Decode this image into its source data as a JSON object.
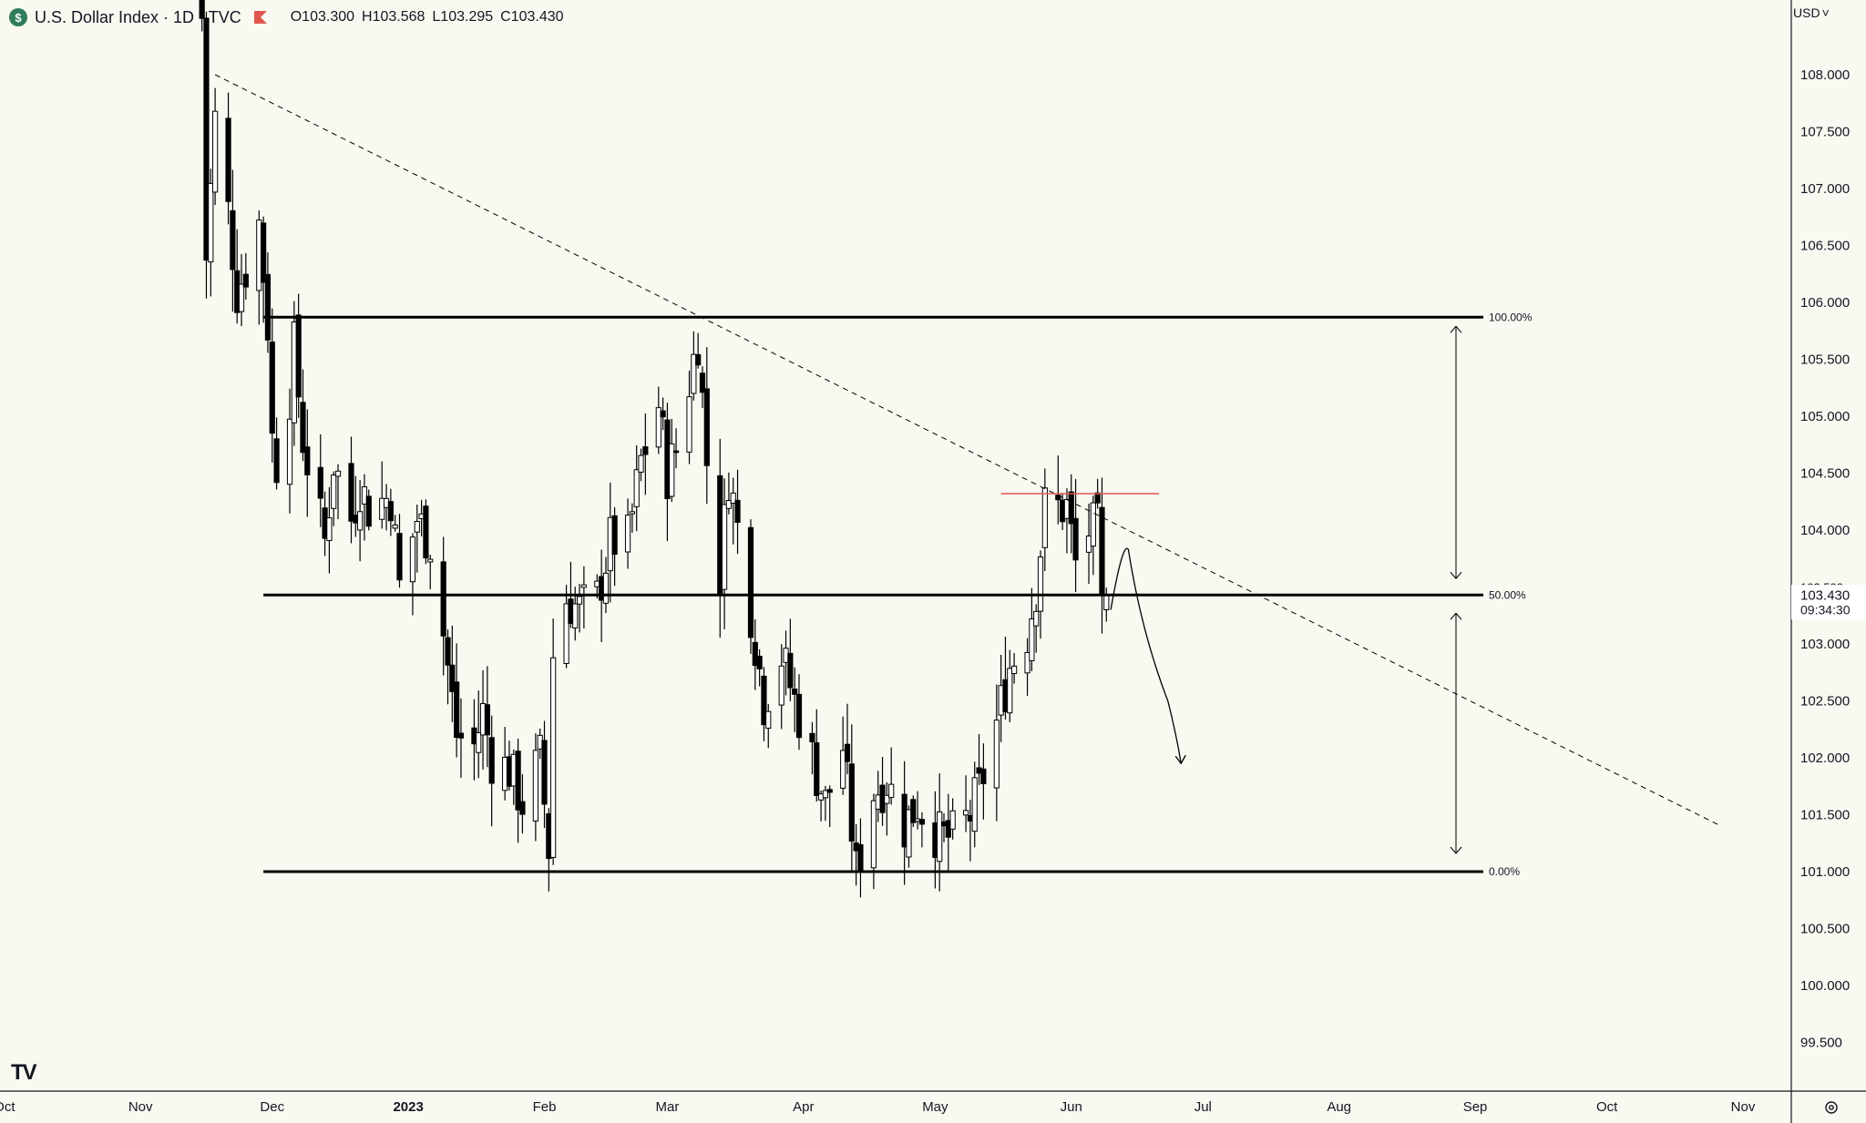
{
  "header": {
    "badge": "$",
    "symbol_title": "U.S. Dollar Index · 1D · TVC",
    "open": "O103.300",
    "high": "H103.568",
    "low": "L103.295",
    "close": "C103.430"
  },
  "currency_menu": {
    "label": "USD",
    "caret": "˅"
  },
  "price_tag": {
    "price": "103.430",
    "countdown": "09:34:30",
    "partial_label": "103.500"
  },
  "brand": {
    "logo_text": "TV"
  },
  "icons": {
    "settings": "settings-gear-icon",
    "logo": "tradingview-logo-icon"
  },
  "colors": {
    "background": "#f9f8f1",
    "candle_up_fill": "#ffffff",
    "candle_down_fill": "#000000",
    "resistance_line": "#e0574f",
    "tag_background": "#ffffff"
  },
  "chart_data": {
    "type": "candlestick",
    "title": "U.S. Dollar Index · 1D · TVC",
    "ylim": [
      99.1,
      108.7
    ],
    "xlim": [
      "2022-09-30",
      "2023-11-12"
    ],
    "y_ticks": [
      "108.000",
      "107.500",
      "107.000",
      "106.500",
      "106.000",
      "105.500",
      "105.000",
      "104.500",
      "104.000",
      "103.000",
      "102.500",
      "102.000",
      "101.500",
      "101.000",
      "100.500",
      "100.000",
      "99.500"
    ],
    "x_ticks": [
      {
        "label": "Oct",
        "date": "2022-10-01"
      },
      {
        "label": "Nov",
        "date": "2022-11-01"
      },
      {
        "label": "Dec",
        "date": "2022-12-01"
      },
      {
        "label": "2023",
        "date": "2023-01-01"
      },
      {
        "label": "Feb",
        "date": "2023-02-01"
      },
      {
        "label": "Mar",
        "date": "2023-03-01"
      },
      {
        "label": "Apr",
        "date": "2023-04-01"
      },
      {
        "label": "May",
        "date": "2023-05-01"
      },
      {
        "label": "Jun",
        "date": "2023-06-01"
      },
      {
        "label": "Jul",
        "date": "2023-07-01"
      },
      {
        "label": "Aug",
        "date": "2023-08-01"
      },
      {
        "label": "Sep",
        "date": "2023-09-01"
      },
      {
        "label": "Oct",
        "date": "2023-10-01"
      },
      {
        "label": "Nov",
        "date": "2023-11-01"
      }
    ],
    "series": [
      {
        "close_path": [
          [
            "2022-11-15",
            108.5
          ],
          [
            "2022-11-16",
            106.4
          ],
          [
            "2022-11-18",
            107.6
          ],
          [
            "2022-11-21",
            106.8
          ],
          [
            "2022-11-23",
            106.1
          ],
          [
            "2022-11-25",
            106.3
          ],
          [
            "2022-11-28",
            106.7
          ],
          [
            "2022-11-30",
            105.8
          ],
          [
            "2022-12-01",
            104.8
          ],
          [
            "2022-12-02",
            104.6
          ],
          [
            "2022-12-05",
            105.2
          ],
          [
            "2022-12-06",
            105.6
          ],
          [
            "2022-12-08",
            104.8
          ],
          [
            "2022-12-10",
            104.4
          ],
          [
            "2022-12-13",
            103.9
          ],
          [
            "2022-12-15",
            104.6
          ],
          [
            "2022-12-19",
            104.1
          ],
          [
            "2022-12-21",
            104.4
          ],
          [
            "2022-12-23",
            104.2
          ],
          [
            "2022-12-28",
            104.3
          ],
          [
            "2022-12-30",
            103.5
          ],
          [
            "2023-01-03",
            104.1
          ],
          [
            "2023-01-06",
            103.9
          ],
          [
            "2023-01-09",
            103.1
          ],
          [
            "2023-01-12",
            102.2
          ],
          [
            "2023-01-16",
            102.1
          ],
          [
            "2023-01-18",
            102.4
          ],
          [
            "2023-01-20",
            102.0
          ],
          [
            "2023-01-24",
            101.9
          ],
          [
            "2023-01-27",
            101.6
          ],
          [
            "2023-01-31",
            102.0
          ],
          [
            "2023-02-02",
            101.2
          ],
          [
            "2023-02-03",
            102.9
          ],
          [
            "2023-02-06",
            103.4
          ],
          [
            "2023-02-09",
            103.3
          ],
          [
            "2023-02-13",
            103.4
          ],
          [
            "2023-02-16",
            103.9
          ],
          [
            "2023-02-20",
            103.9
          ],
          [
            "2023-02-23",
            104.6
          ],
          [
            "2023-02-27",
            105.1
          ],
          [
            "2023-03-01",
            104.5
          ],
          [
            "2023-03-03",
            104.7
          ],
          [
            "2023-03-07",
            105.5
          ],
          [
            "2023-03-08",
            105.7
          ],
          [
            "2023-03-10",
            104.6
          ],
          [
            "2023-03-13",
            103.6
          ],
          [
            "2023-03-15",
            104.5
          ],
          [
            "2023-03-20",
            103.3
          ],
          [
            "2023-03-23",
            102.5
          ],
          [
            "2023-03-27",
            102.9
          ],
          [
            "2023-03-30",
            102.5
          ],
          [
            "2023-04-03",
            102.0
          ],
          [
            "2023-04-06",
            101.6
          ],
          [
            "2023-04-10",
            102.1
          ],
          [
            "2023-04-13",
            101.0
          ],
          [
            "2023-04-17",
            101.7
          ],
          [
            "2023-04-20",
            101.8
          ],
          [
            "2023-04-24",
            101.4
          ],
          [
            "2023-04-27",
            101.6
          ],
          [
            "2023-05-02",
            101.3
          ],
          [
            "2023-05-05",
            101.3
          ],
          [
            "2023-05-09",
            101.5
          ],
          [
            "2023-05-11",
            101.7
          ],
          [
            "2023-05-15",
            102.3
          ],
          [
            "2023-05-18",
            102.8
          ],
          [
            "2023-05-22",
            103.1
          ],
          [
            "2023-05-24",
            103.5
          ],
          [
            "2023-05-26",
            104.2
          ],
          [
            "2023-05-31",
            104.2
          ],
          [
            "2023-06-02",
            103.7
          ],
          [
            "2023-06-05",
            104.0
          ],
          [
            "2023-06-07",
            104.0
          ],
          [
            "2023-06-08",
            103.3
          ],
          [
            "2023-06-09",
            103.43
          ]
        ]
      }
    ],
    "annotations": {
      "fib_retracement": [
        {
          "label": "100.00%",
          "price": 105.87,
          "start": "2022-11-29"
        },
        {
          "label": "50.00%",
          "price": 103.43,
          "start": "2022-11-29"
        },
        {
          "label": "0.00%",
          "price": 101.0,
          "start": "2022-11-29"
        }
      ],
      "resistance_line": {
        "price": 104.32,
        "start": "2023-05-16",
        "end": "2023-06-21"
      },
      "trendline": [
        [
          "2022-11-18",
          108.0
        ],
        [
          "2023-10-27",
          101.4
        ]
      ],
      "forecast_path": [
        [
          "2023-06-10",
          103.3
        ],
        [
          "2023-06-14",
          103.83
        ],
        [
          "2023-06-17",
          103.1
        ],
        [
          "2023-06-23",
          102.5
        ],
        [
          "2023-06-26",
          101.95
        ]
      ]
    }
  }
}
